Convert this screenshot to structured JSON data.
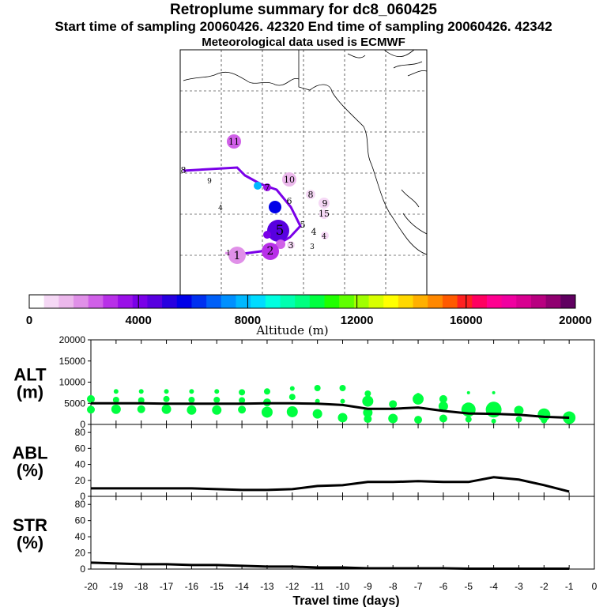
{
  "header": {
    "title": "Retroplume summary for dc8_060425",
    "sampling": "Start time of sampling 20060426. 42320     End time of sampling 20060426. 42342",
    "met": "Meteorological data used is ECMWF"
  },
  "colorbar": {
    "ticks": [
      "0",
      "4000",
      "8000",
      "12000",
      "16000",
      "20000"
    ],
    "label": "Altitude  (m)",
    "colors": [
      "#ffffff",
      "#f5d8f5",
      "#ecb8ec",
      "#e090e8",
      "#d060e8",
      "#b830e8",
      "#9a10e8",
      "#7a00e8",
      "#5800e0",
      "#2800e0",
      "#0000e8",
      "#0030f0",
      "#0060f8",
      "#0090ff",
      "#00b8ff",
      "#00dcff",
      "#00ffe0",
      "#00ffb0",
      "#00ff80",
      "#00ff40",
      "#20ff00",
      "#60ff00",
      "#a0ff00",
      "#d8ff00",
      "#ffff00",
      "#ffd800",
      "#ffb000",
      "#ff8800",
      "#ff5a00",
      "#ff2020",
      "#ff0060",
      "#ff0090",
      "#f000a0",
      "#d80090",
      "#b80080",
      "#900070",
      "#600060"
    ]
  },
  "map_labels": [
    {
      "text": "11"
    },
    {
      "text": "10"
    },
    {
      "text": "9"
    },
    {
      "text": "8"
    },
    {
      "text": "15"
    },
    {
      "text": "5"
    },
    {
      "text": "4"
    },
    {
      "text": "3"
    },
    {
      "text": "2"
    },
    {
      "text": "1"
    },
    {
      "text": "6"
    },
    {
      "text": "7"
    },
    {
      "text": "9"
    },
    {
      "text": "8"
    },
    {
      "text": "4"
    },
    {
      "text": "5"
    },
    {
      "text": "4"
    },
    {
      "text": "3"
    },
    {
      "text": "1"
    }
  ],
  "colors": {
    "trajectory": "#7a00e8",
    "trajectory_tail": "#e090e8",
    "scatter": "#00ff40",
    "line": "#000000"
  },
  "chart_data": [
    {
      "type": "line",
      "panel": "ALT",
      "ylabel": "ALT (m)",
      "ylabel_lines": [
        "ALT",
        "(m)"
      ],
      "ylim": [
        0,
        20000
      ],
      "yticks": [
        "0",
        "5000",
        "10000",
        "15000",
        "20000"
      ],
      "xlim": [
        -20,
        0
      ],
      "x": [
        -20,
        -19,
        -18,
        -17,
        -16,
        -15,
        -14,
        -13,
        -12,
        -11,
        -10,
        -9,
        -8,
        -7,
        -6,
        -5,
        -4,
        -3,
        -2,
        -1
      ],
      "y": [
        5000,
        5000,
        5000,
        4900,
        4900,
        4900,
        4900,
        5000,
        5000,
        4900,
        4600,
        3700,
        3700,
        4000,
        3200,
        2600,
        2500,
        2300,
        1800,
        1600
      ],
      "scatter": [
        {
          "x": -20,
          "y": 6000,
          "s": 5
        },
        {
          "x": -20,
          "y": 3500,
          "s": 5
        },
        {
          "x": -19,
          "y": 7800,
          "s": 3
        },
        {
          "x": -19,
          "y": 5800,
          "s": 4
        },
        {
          "x": -19,
          "y": 3600,
          "s": 6
        },
        {
          "x": -18,
          "y": 7800,
          "s": 3
        },
        {
          "x": -18,
          "y": 5700,
          "s": 4
        },
        {
          "x": -18,
          "y": 3600,
          "s": 5
        },
        {
          "x": -17,
          "y": 7800,
          "s": 3
        },
        {
          "x": -17,
          "y": 6000,
          "s": 4
        },
        {
          "x": -17,
          "y": 3600,
          "s": 6
        },
        {
          "x": -16,
          "y": 7800,
          "s": 3
        },
        {
          "x": -16,
          "y": 5800,
          "s": 4
        },
        {
          "x": -16,
          "y": 3400,
          "s": 6
        },
        {
          "x": -15,
          "y": 7800,
          "s": 3
        },
        {
          "x": -15,
          "y": 5800,
          "s": 4
        },
        {
          "x": -15,
          "y": 3400,
          "s": 6
        },
        {
          "x": -14,
          "y": 7600,
          "s": 4
        },
        {
          "x": -14,
          "y": 5700,
          "s": 4
        },
        {
          "x": -14,
          "y": 3500,
          "s": 5
        },
        {
          "x": -13,
          "y": 7800,
          "s": 4
        },
        {
          "x": -13,
          "y": 5200,
          "s": 5
        },
        {
          "x": -13,
          "y": 2900,
          "s": 7
        },
        {
          "x": -12,
          "y": 8500,
          "s": 3
        },
        {
          "x": -12,
          "y": 6500,
          "s": 4
        },
        {
          "x": -12,
          "y": 3000,
          "s": 7
        },
        {
          "x": -11,
          "y": 8600,
          "s": 4
        },
        {
          "x": -11,
          "y": 5500,
          "s": 3
        },
        {
          "x": -11,
          "y": 2500,
          "s": 6
        },
        {
          "x": -10,
          "y": 8600,
          "s": 4
        },
        {
          "x": -10,
          "y": 5500,
          "s": 3
        },
        {
          "x": -10,
          "y": 1600,
          "s": 6
        },
        {
          "x": -9,
          "y": 7300,
          "s": 4
        },
        {
          "x": -9,
          "y": 5500,
          "s": 7
        },
        {
          "x": -9,
          "y": 2800,
          "s": 6
        },
        {
          "x": -9,
          "y": 1300,
          "s": 5
        },
        {
          "x": -8,
          "y": 4800,
          "s": 5
        },
        {
          "x": -8,
          "y": 1400,
          "s": 6
        },
        {
          "x": -7,
          "y": 6900,
          "s": 3
        },
        {
          "x": -7,
          "y": 6000,
          "s": 7
        },
        {
          "x": -7,
          "y": 1100,
          "s": 5
        },
        {
          "x": -6,
          "y": 6000,
          "s": 5
        },
        {
          "x": -6,
          "y": 4300,
          "s": 6
        },
        {
          "x": -6,
          "y": 1400,
          "s": 5
        },
        {
          "x": -5,
          "y": 7500,
          "s": 2
        },
        {
          "x": -5,
          "y": 3500,
          "s": 9
        },
        {
          "x": -5,
          "y": 1200,
          "s": 4
        },
        {
          "x": -4,
          "y": 7500,
          "s": 2
        },
        {
          "x": -4,
          "y": 3500,
          "s": 10
        },
        {
          "x": -4,
          "y": 800,
          "s": 3
        },
        {
          "x": -3,
          "y": 3300,
          "s": 6
        },
        {
          "x": -3,
          "y": 1200,
          "s": 4
        },
        {
          "x": -2,
          "y": 2300,
          "s": 8
        },
        {
          "x": -2,
          "y": 1000,
          "s": 4
        },
        {
          "x": -1,
          "y": 1600,
          "s": 8
        }
      ]
    },
    {
      "type": "line",
      "panel": "ABL",
      "ylabel": "ABL (%)",
      "ylabel_lines": [
        "ABL",
        "(%)"
      ],
      "ylim": [
        0,
        90
      ],
      "yticks": [
        "0",
        "20",
        "40",
        "60",
        "80"
      ],
      "xlim": [
        -20,
        0
      ],
      "x": [
        -20,
        -19,
        -18,
        -17,
        -16,
        -15,
        -14,
        -13,
        -12,
        -11,
        -10,
        -9,
        -8,
        -7,
        -6,
        -5,
        -4,
        -3,
        -2,
        -1
      ],
      "y": [
        10,
        10,
        10,
        10,
        10,
        9,
        8,
        8,
        9,
        13,
        14,
        18,
        18,
        19,
        18,
        18,
        24,
        21,
        14,
        6
      ]
    },
    {
      "type": "line",
      "panel": "STR",
      "ylabel": "STR (%)",
      "ylabel_lines": [
        "STR",
        "(%)"
      ],
      "ylim": [
        0,
        90
      ],
      "yticks": [
        "0",
        "20",
        "40",
        "60",
        "80"
      ],
      "xlim": [
        -20,
        0
      ],
      "xticks": [
        "-20",
        "-19",
        "-18",
        "-17",
        "-16",
        "-15",
        "-14",
        "-13",
        "-12",
        "-11",
        "-10",
        "-9",
        "-8",
        "-7",
        "-6",
        "-5",
        "-4",
        "-3",
        "-2",
        "-1",
        "0"
      ],
      "xlabel": "Travel time (days)",
      "x": [
        -20,
        -19,
        -18,
        -17,
        -16,
        -15,
        -14,
        -13,
        -12,
        -11,
        -10,
        -9,
        -8,
        -7,
        -6,
        -5,
        -4,
        -3,
        -2,
        -1
      ],
      "y": [
        8,
        7,
        6,
        6,
        5,
        5,
        4,
        3,
        3,
        2,
        2,
        1,
        1,
        1,
        1,
        0.5,
        0.5,
        0.5,
        0.5,
        0.5
      ]
    }
  ]
}
